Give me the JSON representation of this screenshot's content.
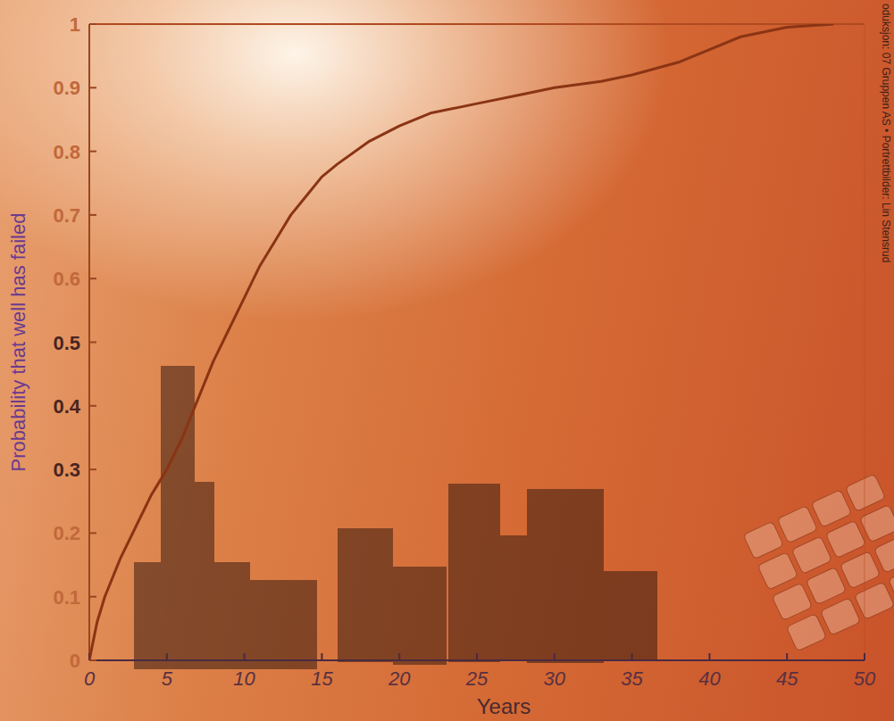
{
  "chart_data": {
    "type": "line",
    "x_label": "Years",
    "y_label": "Probability that well has failed",
    "annotations": [
      "oduksjon: 07 Gruppen AS • Portrettbilder: Lin Stensrud"
    ],
    "x": [
      0,
      0.5,
      1,
      2,
      3,
      4,
      5,
      6,
      7,
      8,
      9,
      10,
      11,
      12,
      13,
      14,
      15,
      16,
      18,
      20,
      22,
      25,
      28,
      30,
      33,
      35,
      38,
      40,
      42,
      45,
      48
    ],
    "series": [
      {
        "color": "#8a3414",
        "values": [
          0,
          0.06,
          0.1,
          0.16,
          0.21,
          0.26,
          0.3,
          0.35,
          0.41,
          0.47,
          0.52,
          0.57,
          0.62,
          0.66,
          0.7,
          0.73,
          0.76,
          0.78,
          0.815,
          0.84,
          0.86,
          0.875,
          0.89,
          0.9,
          0.91,
          0.92,
          0.94,
          0.96,
          0.98,
          0.995,
          1.0
        ]
      }
    ],
    "xlim": [
      0,
      50
    ],
    "xticks": [
      0,
      5,
      10,
      15,
      20,
      25,
      30,
      35,
      40,
      45,
      50
    ],
    "ylim": [
      0,
      1
    ],
    "yticks": [
      0,
      0.1,
      0.2,
      0.3,
      0.4,
      0.5,
      0.6,
      0.7,
      0.8,
      0.9,
      1
    ],
    "grid": false
  }
}
